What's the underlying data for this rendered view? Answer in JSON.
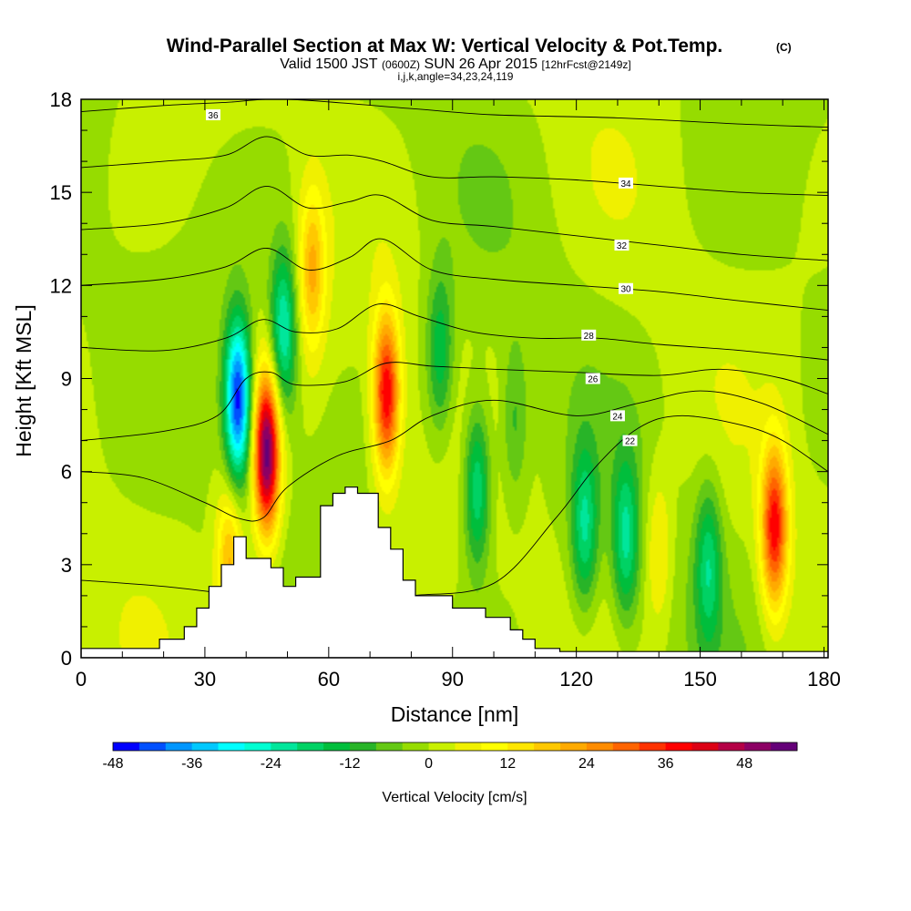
{
  "header": {
    "title": "Wind-Parallel Section at Max W: Vertical Velocity & Pot.Temp.",
    "copyright": "(C)",
    "subtitle_a": "Valid 1500 JST",
    "subtitle_b": "(0600Z)",
    "subtitle_c": "SUN 26 Apr 2015",
    "subtitle_d": "[12hrFcst@2149z]",
    "subtitle_line3": "i,j,k,angle=34,23,24,119"
  },
  "chart_data": {
    "type": "heatmap",
    "xlabel": "Distance [nm]",
    "ylabel": "Height [Kft MSL]",
    "xlim": [
      0,
      181
    ],
    "ylim": [
      0,
      18
    ],
    "x_ticks": [
      "0",
      "30",
      "60",
      "90",
      "120",
      "150",
      "180"
    ],
    "y_ticks": [
      "0",
      "3",
      "6",
      "9",
      "12",
      "15",
      "18"
    ],
    "colorbar": {
      "label": "Vertical Velocity [cm/s]",
      "min": -48,
      "max": 54,
      "step": 4,
      "tick_labels": [
        "-48",
        "-36",
        "-24",
        "-12",
        "0",
        "12",
        "24",
        "36",
        "48"
      ],
      "colors": [
        "#0000ff",
        "#0050ff",
        "#0096ff",
        "#00c8ff",
        "#00ffff",
        "#00ffd2",
        "#00e69b",
        "#00d264",
        "#00be3c",
        "#28b428",
        "#64c814",
        "#96dc00",
        "#c8f000",
        "#f0f000",
        "#ffff00",
        "#ffe600",
        "#ffc800",
        "#ffaa00",
        "#ff8c00",
        "#ff6400",
        "#ff3200",
        "#ff0000",
        "#dc0014",
        "#b40046",
        "#8c0064",
        "#640078"
      ]
    },
    "updrafts_cm_s": [
      {
        "x": 45,
        "z": 6.6,
        "w": 54
      },
      {
        "x": 74,
        "z": 8.5,
        "w": 40
      },
      {
        "x": 168,
        "z": 4.2,
        "w": 38
      },
      {
        "x": 36,
        "z": 3.0,
        "w": 22
      },
      {
        "x": 56,
        "z": 12.5,
        "w": 20
      },
      {
        "x": 140,
        "z": 3.5,
        "w": 10
      }
    ],
    "downdrafts_cm_s": [
      {
        "x": 38,
        "z": 8.3,
        "w": -46
      },
      {
        "x": 49,
        "z": 10.5,
        "w": -26
      },
      {
        "x": 96,
        "z": 5.5,
        "w": -22
      },
      {
        "x": 87,
        "z": 9.8,
        "w": -16
      },
      {
        "x": 122,
        "z": 4.2,
        "w": -20
      },
      {
        "x": 132,
        "z": 3.8,
        "w": -20
      },
      {
        "x": 152,
        "z": 3.0,
        "w": -18
      },
      {
        "x": 105,
        "z": 7.5,
        "w": -10
      }
    ],
    "terrain_kft": {
      "x": [
        0,
        19,
        19,
        25,
        25,
        28,
        28,
        31,
        31,
        34,
        34,
        37,
        37,
        40,
        40,
        46,
        46,
        49,
        49,
        52,
        52,
        58,
        58,
        61,
        61,
        64,
        64,
        67,
        67,
        72,
        72,
        75,
        75,
        78,
        78,
        81,
        81,
        84,
        84,
        90,
        90,
        98,
        98,
        104,
        104,
        107,
        107,
        110,
        110,
        116,
        116,
        118,
        181
      ],
      "z": [
        0.3,
        0.3,
        0.6,
        0.6,
        1.0,
        1.0,
        1.6,
        1.6,
        2.3,
        2.3,
        3.0,
        3.0,
        3.9,
        3.9,
        3.2,
        3.2,
        2.9,
        2.9,
        2.3,
        2.3,
        2.6,
        2.6,
        4.9,
        4.9,
        5.3,
        5.3,
        5.5,
        5.5,
        5.3,
        5.3,
        4.2,
        4.2,
        3.5,
        3.5,
        2.5,
        2.5,
        2.0,
        2.0,
        2.0,
        2.0,
        1.6,
        1.6,
        1.3,
        1.3,
        0.9,
        0.9,
        0.6,
        0.6,
        0.3,
        0.3,
        0.2,
        0.2,
        0.2
      ]
    },
    "isentropes": [
      {
        "value": "22",
        "label_pos": [
          133,
          7.0
        ],
        "points": [
          [
            0,
            2.5
          ],
          [
            20,
            2.3
          ],
          [
            40,
            2.0
          ],
          [
            60,
            1.8
          ],
          [
            80,
            2.0
          ],
          [
            100,
            2.4
          ],
          [
            115,
            4.5
          ],
          [
            125,
            6.2
          ],
          [
            135,
            7.4
          ],
          [
            145,
            7.8
          ],
          [
            160,
            7.5
          ],
          [
            170,
            7.0
          ],
          [
            181,
            6.0
          ]
        ]
      },
      {
        "value": "24",
        "label_pos": [
          130,
          7.8
        ],
        "points": [
          [
            0,
            6.0
          ],
          [
            15,
            5.8
          ],
          [
            30,
            5.0
          ],
          [
            38,
            4.5
          ],
          [
            44,
            4.5
          ],
          [
            50,
            5.5
          ],
          [
            62,
            6.5
          ],
          [
            75,
            7.0
          ],
          [
            85,
            7.8
          ],
          [
            100,
            8.3
          ],
          [
            120,
            7.8
          ],
          [
            135,
            8.2
          ],
          [
            150,
            8.6
          ],
          [
            165,
            8.2
          ],
          [
            181,
            7.2
          ]
        ]
      },
      {
        "value": "26",
        "label_pos": [
          124,
          9.0
        ],
        "points": [
          [
            0,
            7.0
          ],
          [
            20,
            7.3
          ],
          [
            33,
            7.8
          ],
          [
            40,
            9.0
          ],
          [
            46,
            9.2
          ],
          [
            52,
            8.8
          ],
          [
            64,
            8.9
          ],
          [
            74,
            9.5
          ],
          [
            85,
            9.4
          ],
          [
            100,
            9.3
          ],
          [
            120,
            9.2
          ],
          [
            140,
            9.1
          ],
          [
            155,
            9.3
          ],
          [
            170,
            9.0
          ],
          [
            181,
            8.5
          ]
        ]
      },
      {
        "value": "28",
        "label_pos": [
          123,
          10.4
        ],
        "points": [
          [
            0,
            10.0
          ],
          [
            20,
            9.9
          ],
          [
            35,
            10.3
          ],
          [
            44,
            10.9
          ],
          [
            52,
            10.5
          ],
          [
            62,
            10.6
          ],
          [
            72,
            11.4
          ],
          [
            82,
            11.0
          ],
          [
            95,
            10.5
          ],
          [
            110,
            10.3
          ],
          [
            125,
            10.3
          ],
          [
            140,
            10.1
          ],
          [
            160,
            9.9
          ],
          [
            181,
            9.6
          ]
        ]
      },
      {
        "value": "30",
        "label_pos": [
          132,
          11.9
        ],
        "points": [
          [
            0,
            12.0
          ],
          [
            20,
            12.2
          ],
          [
            35,
            12.6
          ],
          [
            45,
            13.2
          ],
          [
            55,
            12.5
          ],
          [
            65,
            12.9
          ],
          [
            73,
            13.5
          ],
          [
            85,
            12.5
          ],
          [
            100,
            12.2
          ],
          [
            120,
            12.0
          ],
          [
            140,
            11.8
          ],
          [
            160,
            11.5
          ],
          [
            181,
            11.2
          ]
        ]
      },
      {
        "value": "32",
        "label_pos": [
          131,
          13.3
        ],
        "points": [
          [
            0,
            13.8
          ],
          [
            20,
            14.0
          ],
          [
            35,
            14.5
          ],
          [
            45,
            15.2
          ],
          [
            55,
            14.5
          ],
          [
            65,
            14.7
          ],
          [
            73,
            14.9
          ],
          [
            85,
            14.1
          ],
          [
            100,
            13.9
          ],
          [
            120,
            13.6
          ],
          [
            140,
            13.3
          ],
          [
            160,
            13.0
          ],
          [
            181,
            12.8
          ]
        ]
      },
      {
        "value": "34",
        "label_pos": [
          132,
          15.3
        ],
        "points": [
          [
            0,
            15.8
          ],
          [
            20,
            16.0
          ],
          [
            35,
            16.2
          ],
          [
            45,
            16.8
          ],
          [
            55,
            16.2
          ],
          [
            65,
            16.2
          ],
          [
            73,
            16.0
          ],
          [
            85,
            15.5
          ],
          [
            100,
            15.5
          ],
          [
            120,
            15.4
          ],
          [
            140,
            15.2
          ],
          [
            160,
            15.0
          ],
          [
            181,
            14.9
          ]
        ]
      },
      {
        "value": "36",
        "label_pos": [
          32,
          17.5
        ],
        "points": [
          [
            0,
            17.6
          ],
          [
            20,
            17.8
          ],
          [
            35,
            17.9
          ],
          [
            50,
            18.0
          ],
          [
            80,
            17.7
          ],
          [
            100,
            17.5
          ],
          [
            130,
            17.4
          ],
          [
            160,
            17.2
          ],
          [
            181,
            17.1
          ]
        ]
      }
    ]
  }
}
